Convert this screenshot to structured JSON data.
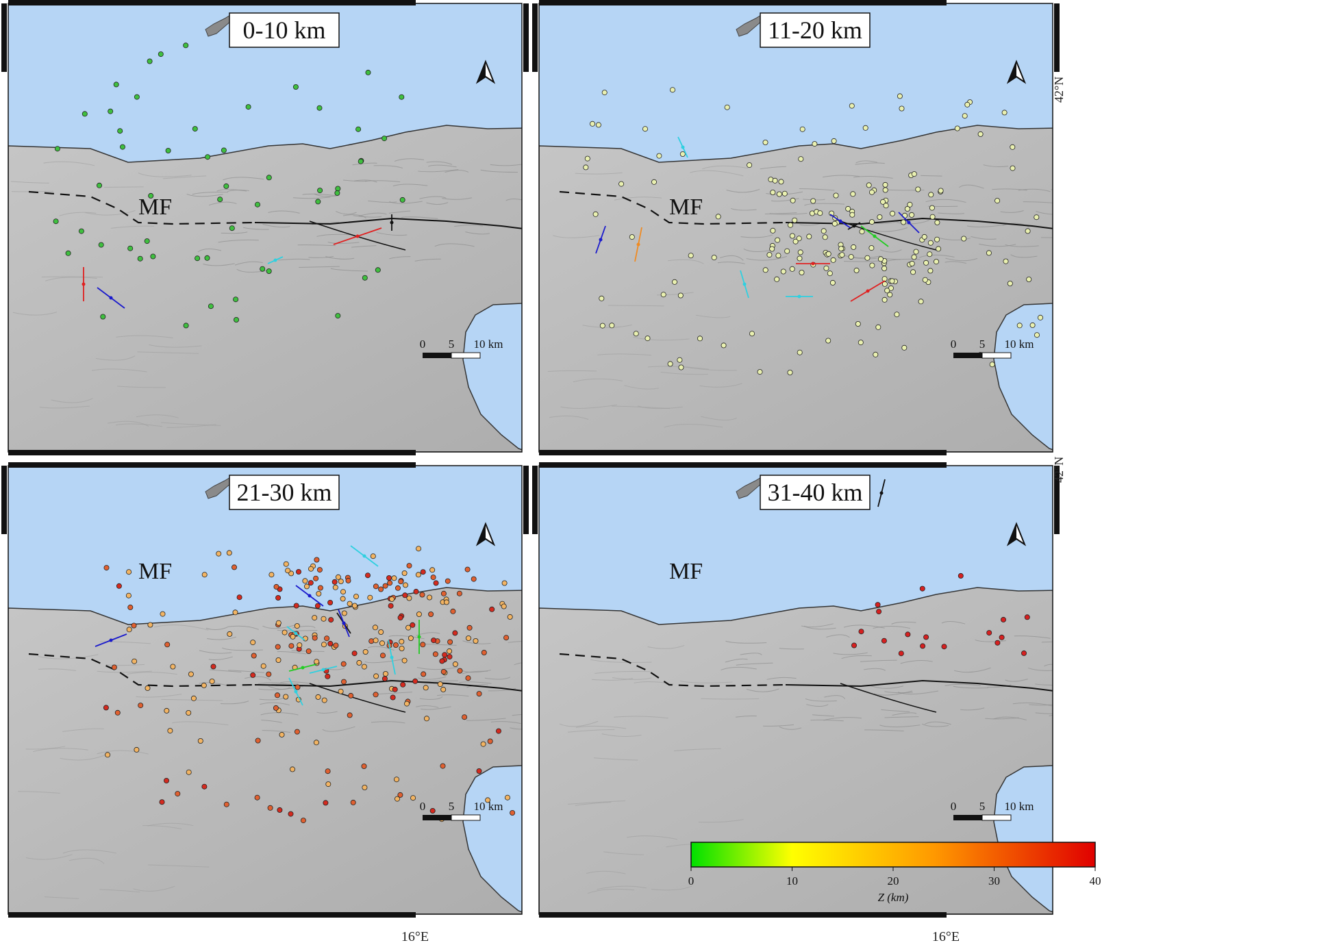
{
  "panels": [
    {
      "title": "0-10 km",
      "fault_label": "MF",
      "depth_color": "#3fbf3f"
    },
    {
      "title": "11-20 km",
      "fault_label": "MF",
      "depth_color": "#e9f0b0"
    },
    {
      "title": "21-30 km",
      "fault_label": "MF",
      "depth_color": "#e8793a"
    },
    {
      "title": "31-40 km",
      "fault_label": "MF",
      "depth_color": "#d62020"
    }
  ],
  "scalebar": {
    "labels": [
      "0",
      "5",
      "10 km"
    ]
  },
  "axes": {
    "longitude_label": "16°E",
    "latitude_label": "42°N"
  },
  "colorbar": {
    "title": "Z (km)",
    "ticks": [
      "0",
      "10",
      "20",
      "30",
      "40"
    ],
    "colors": [
      "#00e000",
      "#ffff00",
      "#ff8c00",
      "#e00000"
    ]
  },
  "colors": {
    "sea": "#b6d5f5",
    "land": "#b9b9b9",
    "arrow_red": "#e02020",
    "arrow_blue": "#1a1acc",
    "arrow_cyan": "#2fd0e0",
    "arrow_black": "#111111",
    "arrow_green": "#22cc22",
    "arrow_orange": "#f08a20"
  }
}
